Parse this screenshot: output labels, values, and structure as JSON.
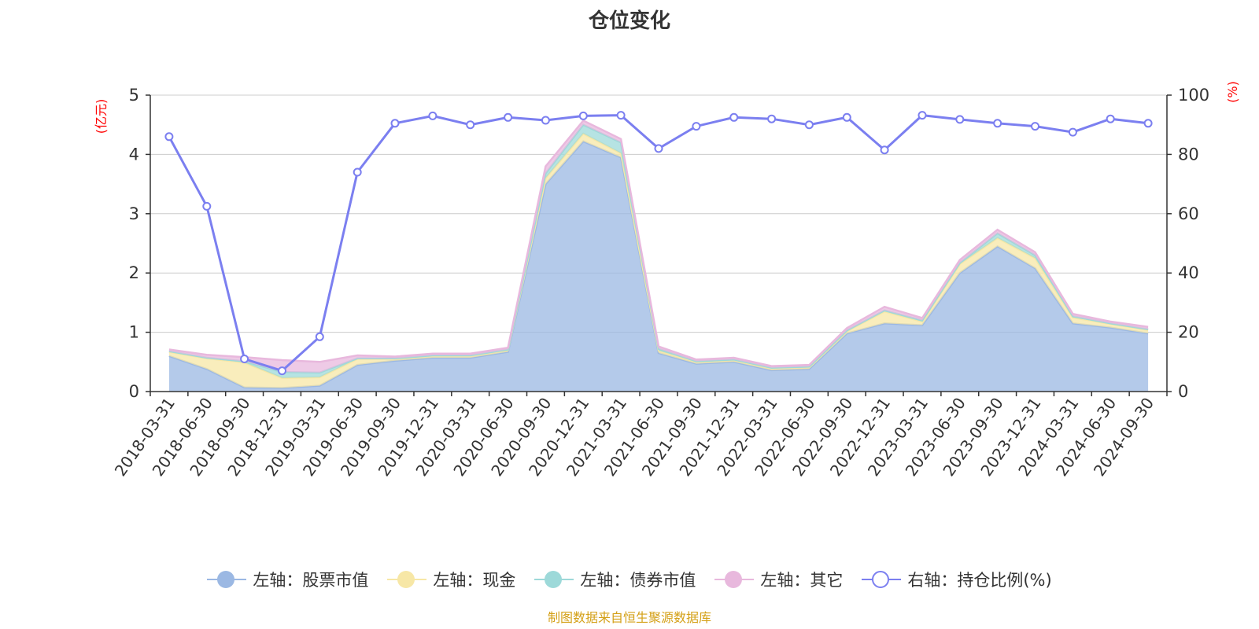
{
  "chart_data": {
    "type": "area",
    "title": "仓位变化",
    "y_left_unit": "(亿元)",
    "y_right_unit": "(%)",
    "y_left_range": [
      0,
      5
    ],
    "y_left_ticks": [
      "0",
      "1",
      "2",
      "3",
      "4",
      "5"
    ],
    "y_right_range": [
      0,
      100
    ],
    "y_right_ticks": [
      "0",
      "20",
      "40",
      "60",
      "80",
      "100"
    ],
    "grid": true,
    "legend_position": "bottom",
    "categories": [
      "2018-03-31",
      "2018-06-30",
      "2018-09-30",
      "2018-12-31",
      "2019-03-31",
      "2019-06-30",
      "2019-09-30",
      "2019-12-31",
      "2020-03-31",
      "2020-06-30",
      "2020-09-30",
      "2020-12-31",
      "2021-03-31",
      "2021-06-30",
      "2021-09-30",
      "2021-12-31",
      "2022-03-31",
      "2022-06-30",
      "2022-09-30",
      "2022-12-31",
      "2023-03-31",
      "2023-06-30",
      "2023-09-30",
      "2023-12-31",
      "2024-03-31",
      "2024-06-30",
      "2024-09-30"
    ],
    "series": [
      {
        "name": "左轴：股票市值",
        "axis": "left",
        "stack": true,
        "color": "#9bb8e3",
        "values": [
          0.6,
          0.38,
          0.07,
          0.06,
          0.1,
          0.45,
          0.52,
          0.57,
          0.57,
          0.67,
          3.5,
          4.22,
          3.95,
          0.65,
          0.47,
          0.5,
          0.36,
          0.38,
          0.98,
          1.15,
          1.12,
          2.0,
          2.45,
          2.08,
          1.15,
          1.08,
          0.98
        ]
      },
      {
        "name": "左轴：现金",
        "axis": "left",
        "stack": true,
        "color": "#f7e7a6",
        "values": [
          0.07,
          0.18,
          0.42,
          0.17,
          0.14,
          0.1,
          0.03,
          0.03,
          0.03,
          0.03,
          0.1,
          0.13,
          0.07,
          0.04,
          0.03,
          0.03,
          0.03,
          0.03,
          0.04,
          0.2,
          0.06,
          0.15,
          0.14,
          0.17,
          0.1,
          0.06,
          0.06
        ]
      },
      {
        "name": "左轴：债券市值",
        "axis": "left",
        "stack": true,
        "color": "#9dd9d9",
        "values": [
          0.01,
          0.01,
          0.02,
          0.1,
          0.08,
          0.01,
          0.01,
          0.01,
          0.01,
          0.01,
          0.08,
          0.15,
          0.18,
          0.03,
          0.01,
          0.01,
          0.01,
          0.01,
          0.01,
          0.02,
          0.02,
          0.02,
          0.08,
          0.05,
          0.02,
          0.01,
          0.01
        ]
      },
      {
        "name": "左轴：其它",
        "axis": "left",
        "stack": true,
        "color": "#e8b8dd",
        "values": [
          0.03,
          0.05,
          0.07,
          0.2,
          0.18,
          0.05,
          0.03,
          0.03,
          0.03,
          0.03,
          0.12,
          0.07,
          0.06,
          0.04,
          0.03,
          0.03,
          0.03,
          0.03,
          0.04,
          0.06,
          0.04,
          0.05,
          0.06,
          0.05,
          0.04,
          0.03,
          0.04
        ]
      },
      {
        "name": "右轴：持仓比例(%)",
        "axis": "right",
        "stack": false,
        "color": "#7b7ff0",
        "values": [
          86,
          62.5,
          11,
          7,
          18.5,
          74,
          90.5,
          93,
          90,
          92.5,
          91.5,
          93,
          93.2,
          82,
          89.5,
          92.5,
          92,
          90,
          92.5,
          81.5,
          93.2,
          91.8,
          90.5,
          89.5,
          87.5,
          92,
          90.5
        ]
      }
    ]
  },
  "footer": "制图数据来自恒生聚源数据库"
}
